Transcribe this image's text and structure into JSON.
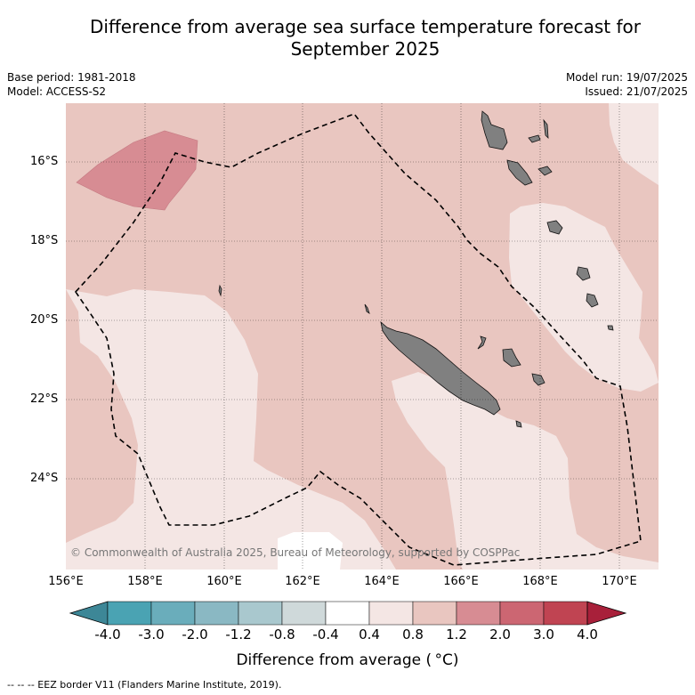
{
  "title": "Difference from average sea surface temperature forecast for September 2025",
  "title_line1": "Difference from average sea surface temperature forecast for",
  "title_line2": "September 2025",
  "base_period": "Base period: 1981-2018",
  "model": "Model: ACCESS-S2",
  "model_run": "Model run: 19/07/2025",
  "issued": "Issued: 21/07/2025",
  "credit": "© Commonwealth of Australia 2025, Bureau of Meteorology, supported by COSPPac",
  "x_ticks": [
    "156°E",
    "158°E",
    "160°E",
    "162°E",
    "164°E",
    "166°E",
    "168°E",
    "170°E"
  ],
  "y_ticks": [
    "16°S",
    "18°S",
    "20°S",
    "22°S",
    "24°S"
  ],
  "colorbar": {
    "labels": [
      "-4.0",
      "-3.0",
      "-2.0",
      "-1.2",
      "-0.8",
      "-0.4",
      "0.4",
      "0.8",
      "1.2",
      "2.0",
      "3.0",
      "4.0"
    ],
    "colors": [
      "#3d8797",
      "#4aa3b3",
      "#6aadbb",
      "#8ab8c3",
      "#a9c8ce",
      "#cfd9da",
      "#ffffff",
      "#f4e6e4",
      "#e9c6c0",
      "#d78c93",
      "#cc6672",
      "#c04452",
      "#a8203a"
    ],
    "title": "Difference from average ( °C)"
  },
  "legend_footnote": "-- -- -- EEZ border V11 (Flanders Marine Institute, 2019).",
  "colors": {
    "anomaly_0_4_to_0_8": "#f4e6e4",
    "anomaly_0_8_to_1_2": "#e9c6c0",
    "anomaly_1_2_to_2_0": "#d78c93",
    "neutral": "#ffffff",
    "land": "#808080"
  }
}
